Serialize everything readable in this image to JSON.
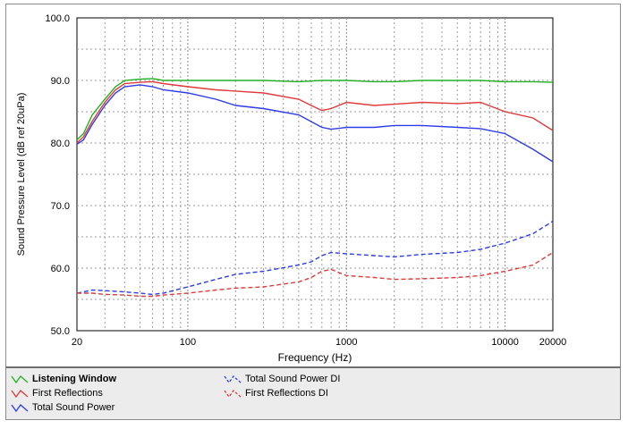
{
  "chart_data": {
    "type": "line",
    "xlabel": "Frequency (Hz)",
    "ylabel": "Sound Pressure Level (dB ref 20uPa)",
    "x_scale": "log",
    "xlim": [
      20,
      20000
    ],
    "ylim": [
      50,
      100
    ],
    "grid": true,
    "legend_placement": "bottom",
    "x_tick_labels": [
      "20",
      "100",
      "1000",
      "10000",
      "20000"
    ],
    "y_tick_labels": [
      "100.0",
      "90.0",
      "80.0",
      "70.0",
      "60.0",
      "50.0"
    ],
    "series": [
      {
        "name": "Listening Window",
        "color": "#22b022",
        "dash": "solid",
        "bold_label": true,
        "x": [
          20,
          22,
          25,
          30,
          35,
          40,
          50,
          60,
          70,
          100,
          150,
          200,
          300,
          500,
          700,
          1000,
          1500,
          2000,
          3000,
          5000,
          7000,
          10000,
          15000,
          20000
        ],
        "y": [
          80.5,
          81.5,
          84.5,
          87.0,
          89.0,
          90.0,
          90.2,
          90.3,
          90.0,
          90.0,
          90.0,
          90.0,
          90.0,
          89.8,
          90.0,
          90.0,
          89.8,
          89.8,
          90.0,
          90.0,
          90.0,
          89.8,
          89.8,
          89.7
        ]
      },
      {
        "name": "First Reflections",
        "color": "#e03a3a",
        "dash": "solid",
        "x": [
          20,
          22,
          25,
          30,
          35,
          40,
          50,
          60,
          70,
          100,
          150,
          200,
          300,
          500,
          600,
          700,
          800,
          1000,
          1500,
          2000,
          3000,
          5000,
          7000,
          10000,
          15000,
          20000
        ],
        "y": [
          80.0,
          81.0,
          83.5,
          86.5,
          88.5,
          89.5,
          89.7,
          89.8,
          89.5,
          89.0,
          88.5,
          88.3,
          88.0,
          87.0,
          86.0,
          85.2,
          85.5,
          86.5,
          86.0,
          86.2,
          86.5,
          86.3,
          86.5,
          85.0,
          84.0,
          82.0
        ]
      },
      {
        "name": "Total Sound Power",
        "color": "#2c3ce8",
        "dash": "solid",
        "x": [
          20,
          22,
          25,
          30,
          35,
          40,
          50,
          60,
          70,
          100,
          150,
          200,
          300,
          500,
          700,
          800,
          1000,
          1500,
          2000,
          3000,
          5000,
          7000,
          10000,
          15000,
          20000
        ],
        "y": [
          79.8,
          80.5,
          83.0,
          86.0,
          88.0,
          89.0,
          89.3,
          89.0,
          88.5,
          88.0,
          87.0,
          86.0,
          85.5,
          84.5,
          82.5,
          82.2,
          82.5,
          82.5,
          82.8,
          82.8,
          82.5,
          82.3,
          81.5,
          79.0,
          77.0
        ]
      },
      {
        "name": "Total Sound Power DI",
        "color": "#2c3ce8",
        "dash": "dashed",
        "x": [
          20,
          25,
          30,
          40,
          50,
          60,
          70,
          100,
          150,
          200,
          300,
          500,
          600,
          700,
          800,
          1000,
          1500,
          2000,
          3000,
          5000,
          7000,
          10000,
          15000,
          20000
        ],
        "y": [
          56.0,
          56.5,
          56.4,
          56.2,
          56.0,
          55.8,
          56.0,
          57.0,
          58.2,
          59.0,
          59.5,
          60.5,
          61.0,
          62.0,
          62.5,
          62.3,
          62.0,
          61.8,
          62.2,
          62.5,
          63.0,
          64.0,
          65.5,
          67.5
        ]
      },
      {
        "name": "First Reflections DI",
        "color": "#e03a3a",
        "dash": "dashed",
        "x": [
          20,
          25,
          30,
          40,
          50,
          60,
          70,
          100,
          150,
          200,
          300,
          500,
          600,
          700,
          800,
          1000,
          1500,
          2000,
          3000,
          5000,
          7000,
          10000,
          15000,
          20000
        ],
        "y": [
          56.0,
          56.0,
          55.8,
          55.7,
          55.5,
          55.5,
          55.7,
          56.0,
          56.5,
          56.8,
          57.0,
          57.8,
          58.5,
          59.5,
          59.8,
          58.8,
          58.5,
          58.2,
          58.3,
          58.5,
          58.8,
          59.5,
          60.5,
          62.5
        ]
      }
    ]
  }
}
